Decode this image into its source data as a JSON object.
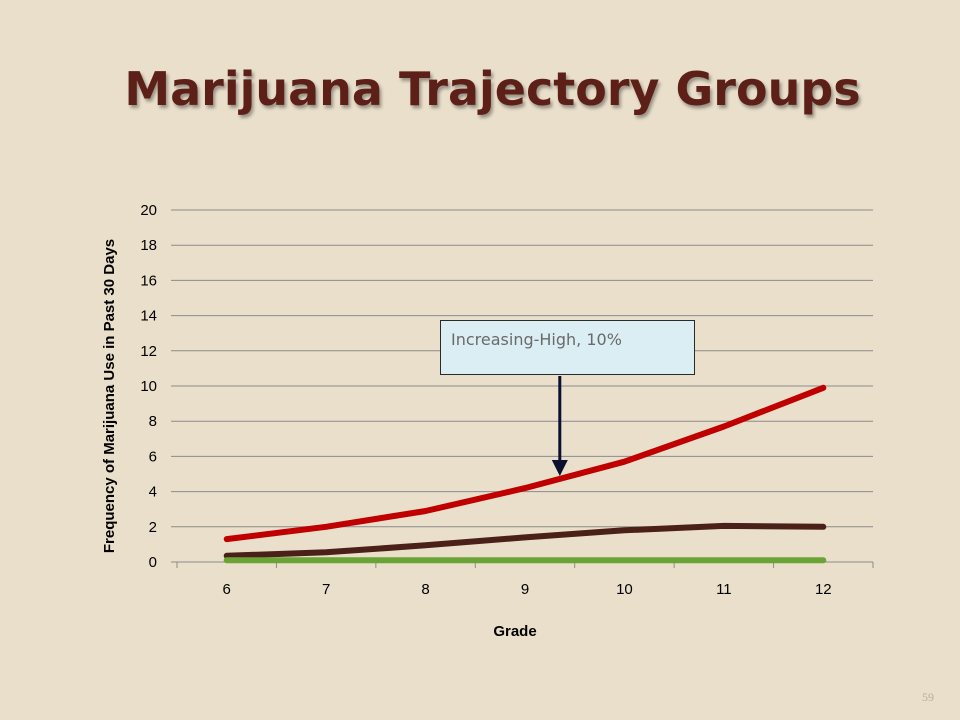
{
  "slide": {
    "title": "Marijuana Trajectory Groups",
    "page_number": "59"
  },
  "chart_data": {
    "type": "line",
    "title": "",
    "xlabel": "Grade",
    "ylabel": "Frequency of Marijuana Use in Past 30 Days",
    "x": [
      6,
      7,
      8,
      9,
      10,
      11,
      12
    ],
    "xlim": [
      5.5,
      12.5
    ],
    "ylim": [
      0,
      20
    ],
    "yticks": [
      0,
      2,
      4,
      6,
      8,
      10,
      12,
      14,
      16,
      18,
      20
    ],
    "grid": "horizontal",
    "legend": "none",
    "series": [
      {
        "values": [
          1.3,
          2.0,
          2.9,
          4.2,
          5.7,
          7.7,
          9.9
        ],
        "color": "#c00000"
      },
      {
        "values": [
          0.35,
          0.55,
          0.95,
          1.4,
          1.8,
          2.05,
          2.0
        ],
        "color": "#4a2018"
      },
      {
        "values": [
          0.1,
          0.1,
          0.1,
          0.1,
          0.1,
          0.1,
          0.1
        ],
        "color": "#6aa436"
      }
    ],
    "annotation": {
      "text": "Increasing-High, 10%",
      "points_to_x": 9.35,
      "points_to_y": 5.0,
      "arrow_color": "#0c1030"
    }
  }
}
